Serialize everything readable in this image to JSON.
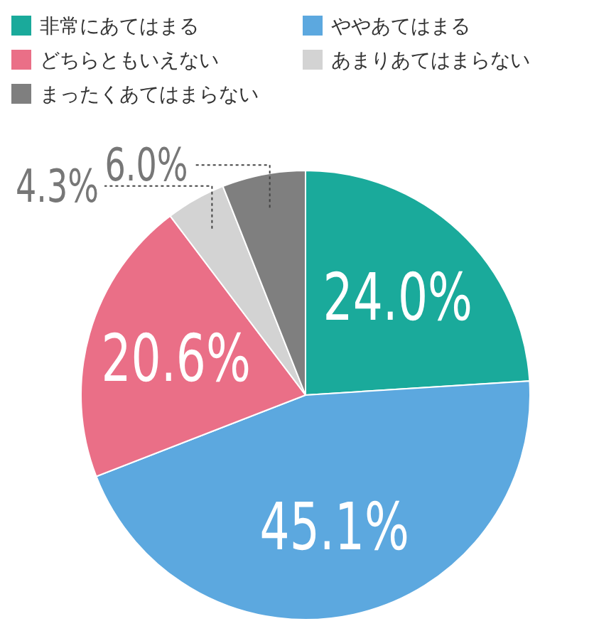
{
  "chart_data": {
    "type": "pie",
    "categories": [
      "非常にあてはまる",
      "ややあてはまる",
      "どちらともいえない",
      "あまりあてはまらない",
      "まったくあてはまらない"
    ],
    "values": [
      24.0,
      45.1,
      20.6,
      4.3,
      6.0
    ],
    "colors": [
      "#1aaa9b",
      "#5ca8df",
      "#ea6f87",
      "#d3d3d3",
      "#7f7f7f"
    ],
    "value_labels": [
      "24.0%",
      "45.1%",
      "20.6%",
      "4.3%",
      "6.0%"
    ],
    "legend": "top"
  }
}
